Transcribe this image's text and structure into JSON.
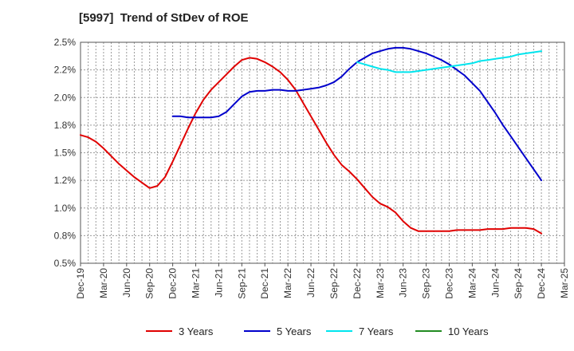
{
  "chart_data": {
    "type": "line",
    "title": "[5997]  Trend of StDev of ROE",
    "xlabel": "",
    "ylabel": "",
    "x_tick_labels": [
      "Dec-19",
      "Mar-20",
      "Jun-20",
      "Sep-20",
      "Dec-20",
      "Mar-21",
      "Jun-21",
      "Sep-21",
      "Dec-21",
      "Mar-22",
      "Jun-22",
      "Sep-22",
      "Dec-22",
      "Mar-23",
      "Jun-23",
      "Sep-23",
      "Dec-23",
      "Mar-24",
      "Jun-24",
      "Sep-24",
      "Dec-24",
      "Mar-25"
    ],
    "y_tick_labels": [
      "2.5%",
      "2.2%",
      "2.0%",
      "1.8%",
      "1.5%",
      "1.2%",
      "1.0%",
      "0.8%",
      "0.5%"
    ],
    "ylim": [
      0.5,
      2.5
    ],
    "y_tick_values": [
      2.5,
      2.25,
      2.0,
      1.75,
      1.5,
      1.25,
      1.0,
      0.75,
      0.5
    ],
    "grid": true,
    "legend_position": "bottom",
    "series": [
      {
        "name": "3 Years",
        "color": "#e00000",
        "x": [
          "Dec-19",
          "Jan-20",
          "Feb-20",
          "Mar-20",
          "Apr-20",
          "May-20",
          "Jun-20",
          "Jul-20",
          "Aug-20",
          "Sep-20",
          "Oct-20",
          "Nov-20",
          "Dec-20",
          "Jan-21",
          "Feb-21",
          "Mar-21",
          "Apr-21",
          "May-21",
          "Jun-21",
          "Jul-21",
          "Aug-21",
          "Sep-21",
          "Oct-21",
          "Nov-21",
          "Dec-21",
          "Jan-22",
          "Feb-22",
          "Mar-22",
          "Apr-22",
          "May-22",
          "Jun-22",
          "Jul-22",
          "Aug-22",
          "Sep-22",
          "Oct-22",
          "Nov-22",
          "Dec-22",
          "Jan-23",
          "Feb-23",
          "Mar-23",
          "Apr-23",
          "May-23",
          "Jun-23",
          "Jul-23",
          "Aug-23",
          "Sep-23",
          "Oct-23",
          "Nov-23",
          "Dec-23",
          "Jan-24",
          "Feb-24",
          "Mar-24",
          "Apr-24",
          "May-24",
          "Jun-24",
          "Jul-24",
          "Aug-24",
          "Sep-24",
          "Oct-24",
          "Nov-24",
          "Dec-24"
        ],
        "values": [
          1.66,
          1.64,
          1.6,
          1.54,
          1.47,
          1.4,
          1.34,
          1.28,
          1.23,
          1.18,
          1.2,
          1.28,
          1.42,
          1.57,
          1.72,
          1.86,
          1.98,
          2.07,
          2.14,
          2.21,
          2.28,
          2.34,
          2.36,
          2.35,
          2.32,
          2.28,
          2.23,
          2.16,
          2.07,
          1.95,
          1.83,
          1.71,
          1.59,
          1.48,
          1.39,
          1.33,
          1.26,
          1.18,
          1.1,
          1.04,
          1.01,
          0.96,
          0.88,
          0.82,
          0.79,
          0.79,
          0.79,
          0.79,
          0.79,
          0.8,
          0.8,
          0.8,
          0.8,
          0.81,
          0.81,
          0.81,
          0.82,
          0.82,
          0.82,
          0.81,
          0.77
        ]
      },
      {
        "name": "5 Years",
        "color": "#0000cc",
        "x": [
          "Dec-20",
          "Jan-21",
          "Feb-21",
          "Mar-21",
          "Apr-21",
          "May-21",
          "Jun-21",
          "Jul-21",
          "Aug-21",
          "Sep-21",
          "Oct-21",
          "Nov-21",
          "Dec-21",
          "Jan-22",
          "Feb-22",
          "Mar-22",
          "Apr-22",
          "May-22",
          "Jun-22",
          "Jul-22",
          "Aug-22",
          "Sep-22",
          "Oct-22",
          "Nov-22",
          "Dec-22",
          "Jan-23",
          "Feb-23",
          "Mar-23",
          "Apr-23",
          "May-23",
          "Jun-23",
          "Jul-23",
          "Aug-23",
          "Sep-23",
          "Oct-23",
          "Nov-23",
          "Dec-23",
          "Jan-24",
          "Feb-24",
          "Mar-24",
          "Apr-24",
          "May-24",
          "Jun-24",
          "Jul-24",
          "Aug-24",
          "Sep-24",
          "Oct-24",
          "Nov-24",
          "Dec-24"
        ],
        "values": [
          1.83,
          1.83,
          1.82,
          1.82,
          1.82,
          1.82,
          1.83,
          1.87,
          1.94,
          2.01,
          2.05,
          2.06,
          2.06,
          2.07,
          2.07,
          2.06,
          2.06,
          2.07,
          2.08,
          2.09,
          2.11,
          2.14,
          2.19,
          2.26,
          2.32,
          2.36,
          2.4,
          2.42,
          2.44,
          2.45,
          2.45,
          2.44,
          2.42,
          2.4,
          2.37,
          2.34,
          2.3,
          2.25,
          2.2,
          2.13,
          2.06,
          1.96,
          1.86,
          1.75,
          1.65,
          1.55,
          1.45,
          1.35,
          1.25
        ]
      },
      {
        "name": "7 Years",
        "color": "#00e5ee",
        "x": [
          "Dec-22",
          "Jan-23",
          "Feb-23",
          "Mar-23",
          "Apr-23",
          "May-23",
          "Jun-23",
          "Jul-23",
          "Aug-23",
          "Sep-23",
          "Oct-23",
          "Nov-23",
          "Dec-23",
          "Jan-24",
          "Feb-24",
          "Mar-24",
          "Apr-24",
          "May-24",
          "Jun-24",
          "Jul-24",
          "Aug-24",
          "Sep-24",
          "Oct-24",
          "Nov-24",
          "Dec-24"
        ],
        "values": [
          2.32,
          2.3,
          2.28,
          2.26,
          2.25,
          2.23,
          2.23,
          2.23,
          2.24,
          2.25,
          2.26,
          2.27,
          2.28,
          2.29,
          2.3,
          2.31,
          2.33,
          2.34,
          2.35,
          2.36,
          2.37,
          2.39,
          2.4,
          2.41,
          2.42
        ]
      },
      {
        "name": "10 Years",
        "color": "#228b22",
        "x": [],
        "values": []
      }
    ]
  }
}
